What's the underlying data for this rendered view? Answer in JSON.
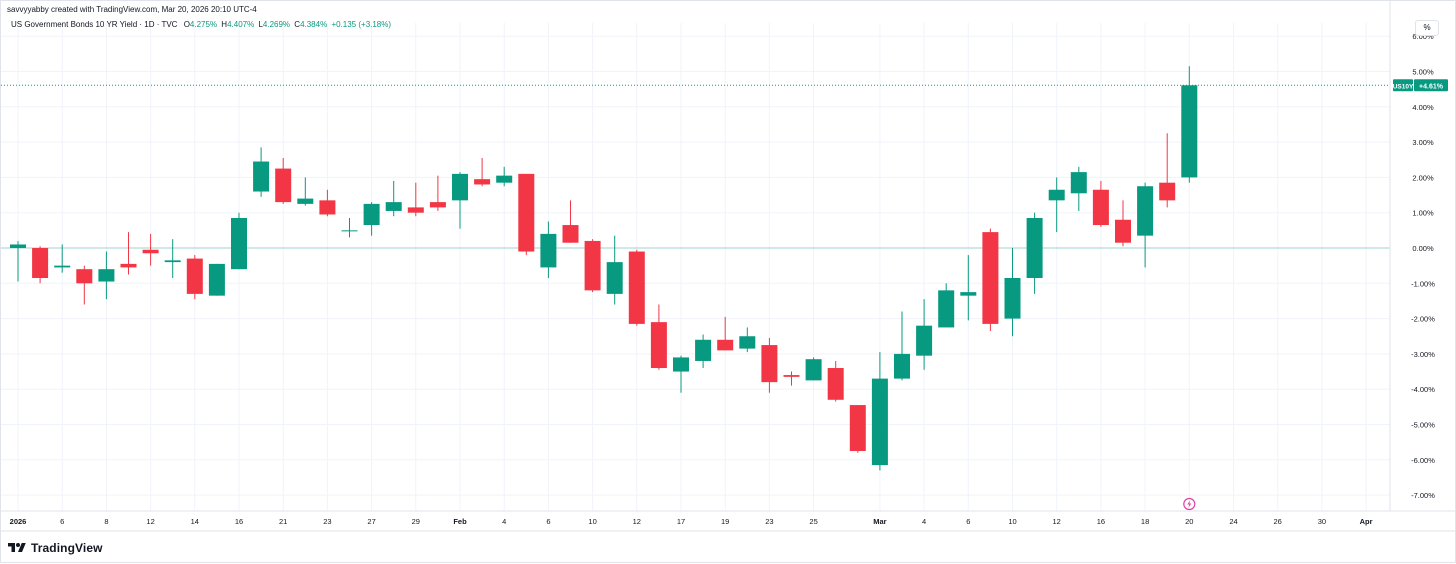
{
  "attribution": "savvyyabby created with TradingView.com, Mar 20, 2026 20:10 UTC-4",
  "legend": {
    "title": "US Government Bonds 10 YR Yield · 1D · TVC",
    "o_label": "O",
    "o_value": "4.275%",
    "h_label": "H",
    "h_value": "4.407%",
    "l_label": "L",
    "l_value": "4.269%",
    "c_label": "C",
    "c_value": "4.384%",
    "change": "+0.135 (+3.18%)"
  },
  "unit_button": "%",
  "brand": {
    "icon": "tradingview-logo-icon",
    "name": "TradingView"
  },
  "event_icon": "lightning-event-icon",
  "colors": {
    "up": "#089981",
    "down": "#f23645",
    "grid": "#f0f3fa",
    "zero": "#9fd5cc",
    "axis_text": "#131722",
    "last_price": "#089981"
  },
  "chart_data": {
    "type": "candlestick",
    "y_unit": "% change",
    "ylim": [
      -7.4,
      6.2
    ],
    "y_ticks": [
      "6.00%",
      "5.00%",
      "4.00%",
      "3.00%",
      "2.00%",
      "1.00%",
      "0.00%",
      "-1.00%",
      "-2.00%",
      "-3.00%",
      "-4.00%",
      "-5.00%",
      "-6.00%",
      "-7.00%"
    ],
    "y_tick_values": [
      6,
      5,
      4,
      3,
      2,
      1,
      0,
      -1,
      -2,
      -3,
      -4,
      -5,
      -6,
      -7
    ],
    "x_ticks": [
      "2026",
      "6",
      "8",
      "12",
      "14",
      "16",
      "21",
      "23",
      "27",
      "29",
      "Feb",
      "4",
      "6",
      "10",
      "12",
      "17",
      "19",
      "23",
      "25",
      "Mar",
      "4",
      "6",
      "10",
      "12",
      "16",
      "18",
      "20",
      "24",
      "26",
      "30",
      "Apr"
    ],
    "x_tick_slots": [
      0,
      2,
      4,
      6,
      8,
      10,
      12,
      14,
      16,
      18,
      20,
      22,
      24,
      26,
      28,
      30,
      32,
      34,
      36,
      39,
      41,
      43,
      45,
      47,
      49,
      51,
      53,
      55,
      57,
      59,
      61
    ],
    "last_value": 4.61,
    "last_label": "US10Y",
    "last_value_label": "+4.61%",
    "candles": [
      {
        "date": "Jan 2",
        "o": 0.0,
        "h": 0.2,
        "l": -0.95,
        "c": 0.1
      },
      {
        "date": "Jan 5",
        "o": 0.0,
        "h": 0.05,
        "l": -1.0,
        "c": -0.85
      },
      {
        "date": "Jan 6",
        "o": -0.55,
        "h": 0.1,
        "l": -0.7,
        "c": -0.5
      },
      {
        "date": "Jan 7",
        "o": -0.6,
        "h": -0.5,
        "l": -1.6,
        "c": -1.0
      },
      {
        "date": "Jan 8",
        "o": -0.95,
        "h": -0.1,
        "l": -1.45,
        "c": -0.6
      },
      {
        "date": "Jan 9",
        "o": -0.45,
        "h": 0.45,
        "l": -0.75,
        "c": -0.55
      },
      {
        "date": "Jan 12",
        "o": -0.05,
        "h": 0.4,
        "l": -0.5,
        "c": -0.15
      },
      {
        "date": "Jan 13",
        "o": -0.4,
        "h": 0.25,
        "l": -0.85,
        "c": -0.35
      },
      {
        "date": "Jan 14",
        "o": -0.3,
        "h": -0.2,
        "l": -1.45,
        "c": -1.3
      },
      {
        "date": "Jan 15",
        "o": -1.35,
        "h": -0.45,
        "l": -1.35,
        "c": -0.45
      },
      {
        "date": "Jan 16",
        "o": -0.6,
        "h": 1.0,
        "l": -0.6,
        "c": 0.85
      },
      {
        "date": "Jan 20",
        "o": 1.6,
        "h": 2.85,
        "l": 1.45,
        "c": 2.45
      },
      {
        "date": "Jan 21",
        "o": 2.25,
        "h": 2.55,
        "l": 1.25,
        "c": 1.3
      },
      {
        "date": "Jan 22",
        "o": 1.25,
        "h": 2.0,
        "l": 1.2,
        "c": 1.4
      },
      {
        "date": "Jan 23",
        "o": 1.35,
        "h": 1.65,
        "l": 0.9,
        "c": 0.95
      },
      {
        "date": "Jan 26",
        "o": 0.5,
        "h": 0.85,
        "l": 0.3,
        "c": 0.5
      },
      {
        "date": "Jan 27",
        "o": 0.65,
        "h": 1.3,
        "l": 0.35,
        "c": 1.25
      },
      {
        "date": "Jan 28",
        "o": 1.05,
        "h": 1.9,
        "l": 0.9,
        "c": 1.3
      },
      {
        "date": "Jan 29",
        "o": 1.15,
        "h": 1.85,
        "l": 0.9,
        "c": 1.0
      },
      {
        "date": "Jan 30",
        "o": 1.3,
        "h": 2.05,
        "l": 1.05,
        "c": 1.15
      },
      {
        "date": "Feb 2",
        "o": 1.35,
        "h": 2.15,
        "l": 0.55,
        "c": 2.1
      },
      {
        "date": "Feb 3",
        "o": 1.95,
        "h": 2.55,
        "l": 1.75,
        "c": 1.8
      },
      {
        "date": "Feb 4",
        "o": 1.85,
        "h": 2.3,
        "l": 1.75,
        "c": 2.05
      },
      {
        "date": "Feb 5",
        "o": 2.1,
        "h": 2.1,
        "l": -0.2,
        "c": -0.1
      },
      {
        "date": "Feb 6",
        "o": -0.55,
        "h": 0.75,
        "l": -0.85,
        "c": 0.4
      },
      {
        "date": "Feb 9",
        "o": 0.65,
        "h": 1.35,
        "l": 0.15,
        "c": 0.15
      },
      {
        "date": "Feb 10",
        "o": 0.2,
        "h": 0.25,
        "l": -1.25,
        "c": -1.2
      },
      {
        "date": "Feb 11",
        "o": -1.3,
        "h": 0.35,
        "l": -1.6,
        "c": -0.4
      },
      {
        "date": "Feb 12",
        "o": -0.1,
        "h": -0.05,
        "l": -2.2,
        "c": -2.15
      },
      {
        "date": "Feb 13",
        "o": -2.1,
        "h": -1.6,
        "l": -3.45,
        "c": -3.4
      },
      {
        "date": "Feb 17",
        "o": -3.5,
        "h": -3.05,
        "l": -4.1,
        "c": -3.1
      },
      {
        "date": "Feb 18",
        "o": -3.2,
        "h": -2.45,
        "l": -3.4,
        "c": -2.6
      },
      {
        "date": "Feb 19",
        "o": -2.6,
        "h": -1.95,
        "l": -2.9,
        "c": -2.9
      },
      {
        "date": "Feb 20",
        "o": -2.85,
        "h": -2.25,
        "l": -2.95,
        "c": -2.5
      },
      {
        "date": "Feb 23",
        "o": -2.75,
        "h": -2.55,
        "l": -4.1,
        "c": -3.8
      },
      {
        "date": "Feb 24",
        "o": -3.6,
        "h": -3.5,
        "l": -3.9,
        "c": -3.65
      },
      {
        "date": "Feb 25",
        "o": -3.75,
        "h": -3.1,
        "l": -3.75,
        "c": -3.15
      },
      {
        "date": "Feb 26",
        "o": -3.4,
        "h": -3.2,
        "l": -4.35,
        "c": -4.3
      },
      {
        "date": "Feb 27",
        "o": -4.45,
        "h": -4.45,
        "l": -5.8,
        "c": -5.75
      },
      {
        "date": "Mar 2",
        "o": -6.15,
        "h": -2.95,
        "l": -6.3,
        "c": -3.7
      },
      {
        "date": "Mar 3",
        "o": -3.7,
        "h": -1.8,
        "l": -3.75,
        "c": -3.0
      },
      {
        "date": "Mar 4",
        "o": -3.05,
        "h": -1.45,
        "l": -3.45,
        "c": -2.2
      },
      {
        "date": "Mar 5",
        "o": -2.25,
        "h": -1.0,
        "l": -2.25,
        "c": -1.2
      },
      {
        "date": "Mar 6",
        "o": -1.35,
        "h": -0.2,
        "l": -2.05,
        "c": -1.25
      },
      {
        "date": "Mar 9",
        "o": 0.45,
        "h": 0.55,
        "l": -2.35,
        "c": -2.15
      },
      {
        "date": "Mar 10",
        "o": -2.0,
        "h": 0.0,
        "l": -2.5,
        "c": -0.85
      },
      {
        "date": "Mar 11",
        "o": -0.85,
        "h": 1.0,
        "l": -1.3,
        "c": 0.85
      },
      {
        "date": "Mar 12",
        "o": 1.35,
        "h": 2.0,
        "l": 0.45,
        "c": 1.65
      },
      {
        "date": "Mar 13",
        "o": 1.55,
        "h": 2.3,
        "l": 1.05,
        "c": 2.15
      },
      {
        "date": "Mar 16",
        "o": 1.65,
        "h": 1.9,
        "l": 0.6,
        "c": 0.65
      },
      {
        "date": "Mar 17",
        "o": 0.8,
        "h": 1.35,
        "l": 0.05,
        "c": 0.15
      },
      {
        "date": "Mar 18",
        "o": 0.35,
        "h": 1.85,
        "l": -0.55,
        "c": 1.75
      },
      {
        "date": "Mar 19",
        "o": 1.85,
        "h": 3.25,
        "l": 1.15,
        "c": 1.35
      },
      {
        "date": "Mar 20",
        "o": 2.0,
        "h": 5.15,
        "l": 1.85,
        "c": 4.61
      }
    ]
  }
}
